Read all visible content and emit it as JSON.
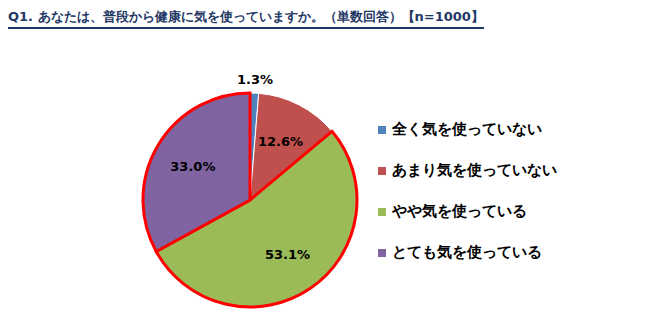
{
  "chart_data": {
    "type": "pie",
    "title": "Q1. あなたは、普段から健康に気を使っていますか。（単数回答）【n=1000】",
    "categories": [
      "全く気を使っていない",
      "あまり気を使っていない",
      "やや気を使っている",
      "とても気を使っている"
    ],
    "values": [
      1.3,
      12.6,
      53.1,
      33.0
    ],
    "value_labels": [
      "1.3%",
      "12.6%",
      "53.1%",
      "33.0%"
    ],
    "colors": [
      "#4f81bd",
      "#c0504d",
      "#9bbb59",
      "#8064a2"
    ],
    "data_labels": true,
    "legend": "right"
  }
}
